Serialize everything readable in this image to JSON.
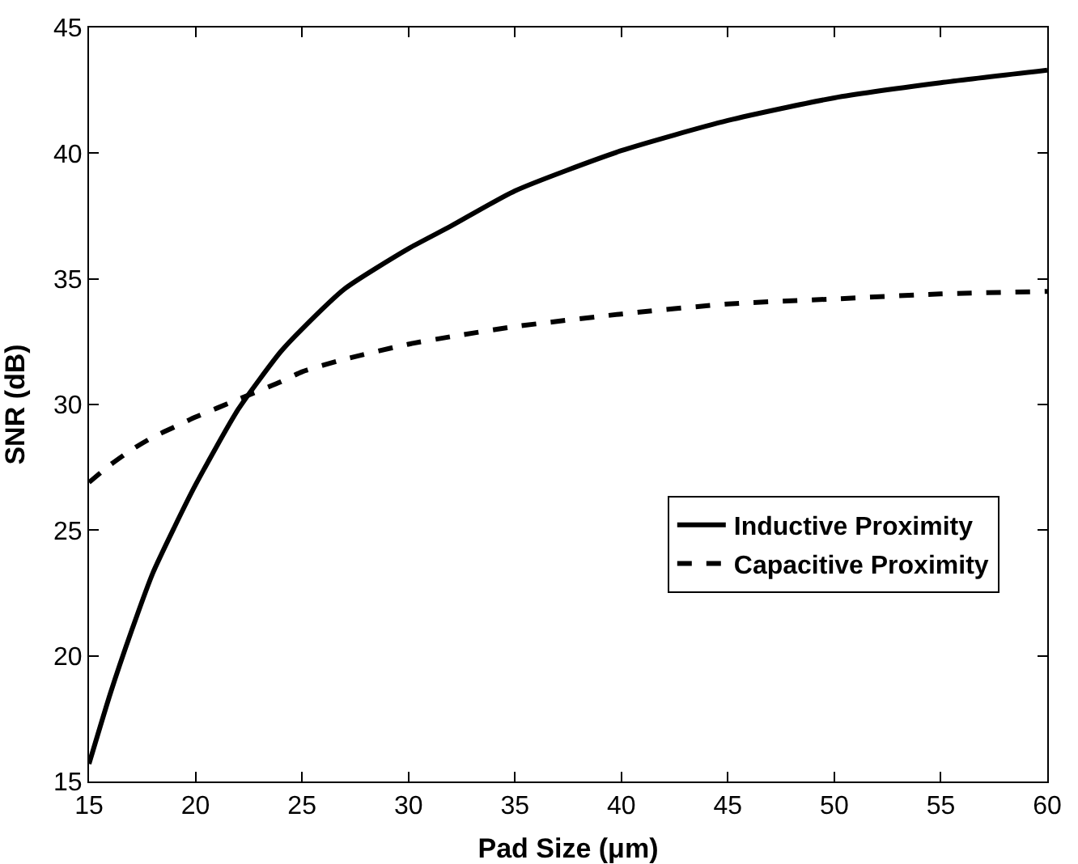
{
  "chart_data": {
    "type": "line",
    "xlabel": "Pad Size (μm)",
    "ylabel": "SNR (dB)",
    "x": [
      15,
      16,
      17,
      18,
      19,
      20,
      22,
      24,
      25,
      27,
      30,
      32,
      35,
      40,
      45,
      50,
      55,
      60
    ],
    "series": [
      {
        "name": "Inductive Proximity",
        "color": "#000000",
        "line_style": "solid",
        "values": [
          15.7,
          18.5,
          21,
          23.3,
          25.1,
          26.8,
          29.8,
          32.1,
          33,
          34.6,
          36.2,
          37.1,
          38.5,
          40.1,
          41.3,
          42.2,
          42.8,
          43.3
        ]
      },
      {
        "name": "Capacitive Proximity",
        "color": "#000000",
        "line_style": "dashed",
        "values": [
          26.9,
          27.6,
          28.2,
          28.7,
          29.1,
          29.5,
          30.2,
          30.9,
          31.3,
          31.8,
          32.4,
          32.7,
          33.1,
          33.6,
          34,
          34.2,
          34.4,
          34.5
        ]
      }
    ],
    "xlim": [
      15,
      60
    ],
    "xticks": [
      15,
      20,
      25,
      30,
      35,
      40,
      45,
      50,
      55,
      60
    ],
    "ylim": [
      15,
      45
    ],
    "yticks": [
      15,
      20,
      25,
      30,
      35,
      40,
      45
    ],
    "grid": false,
    "legend": "bottom right",
    "marker": "none"
  }
}
